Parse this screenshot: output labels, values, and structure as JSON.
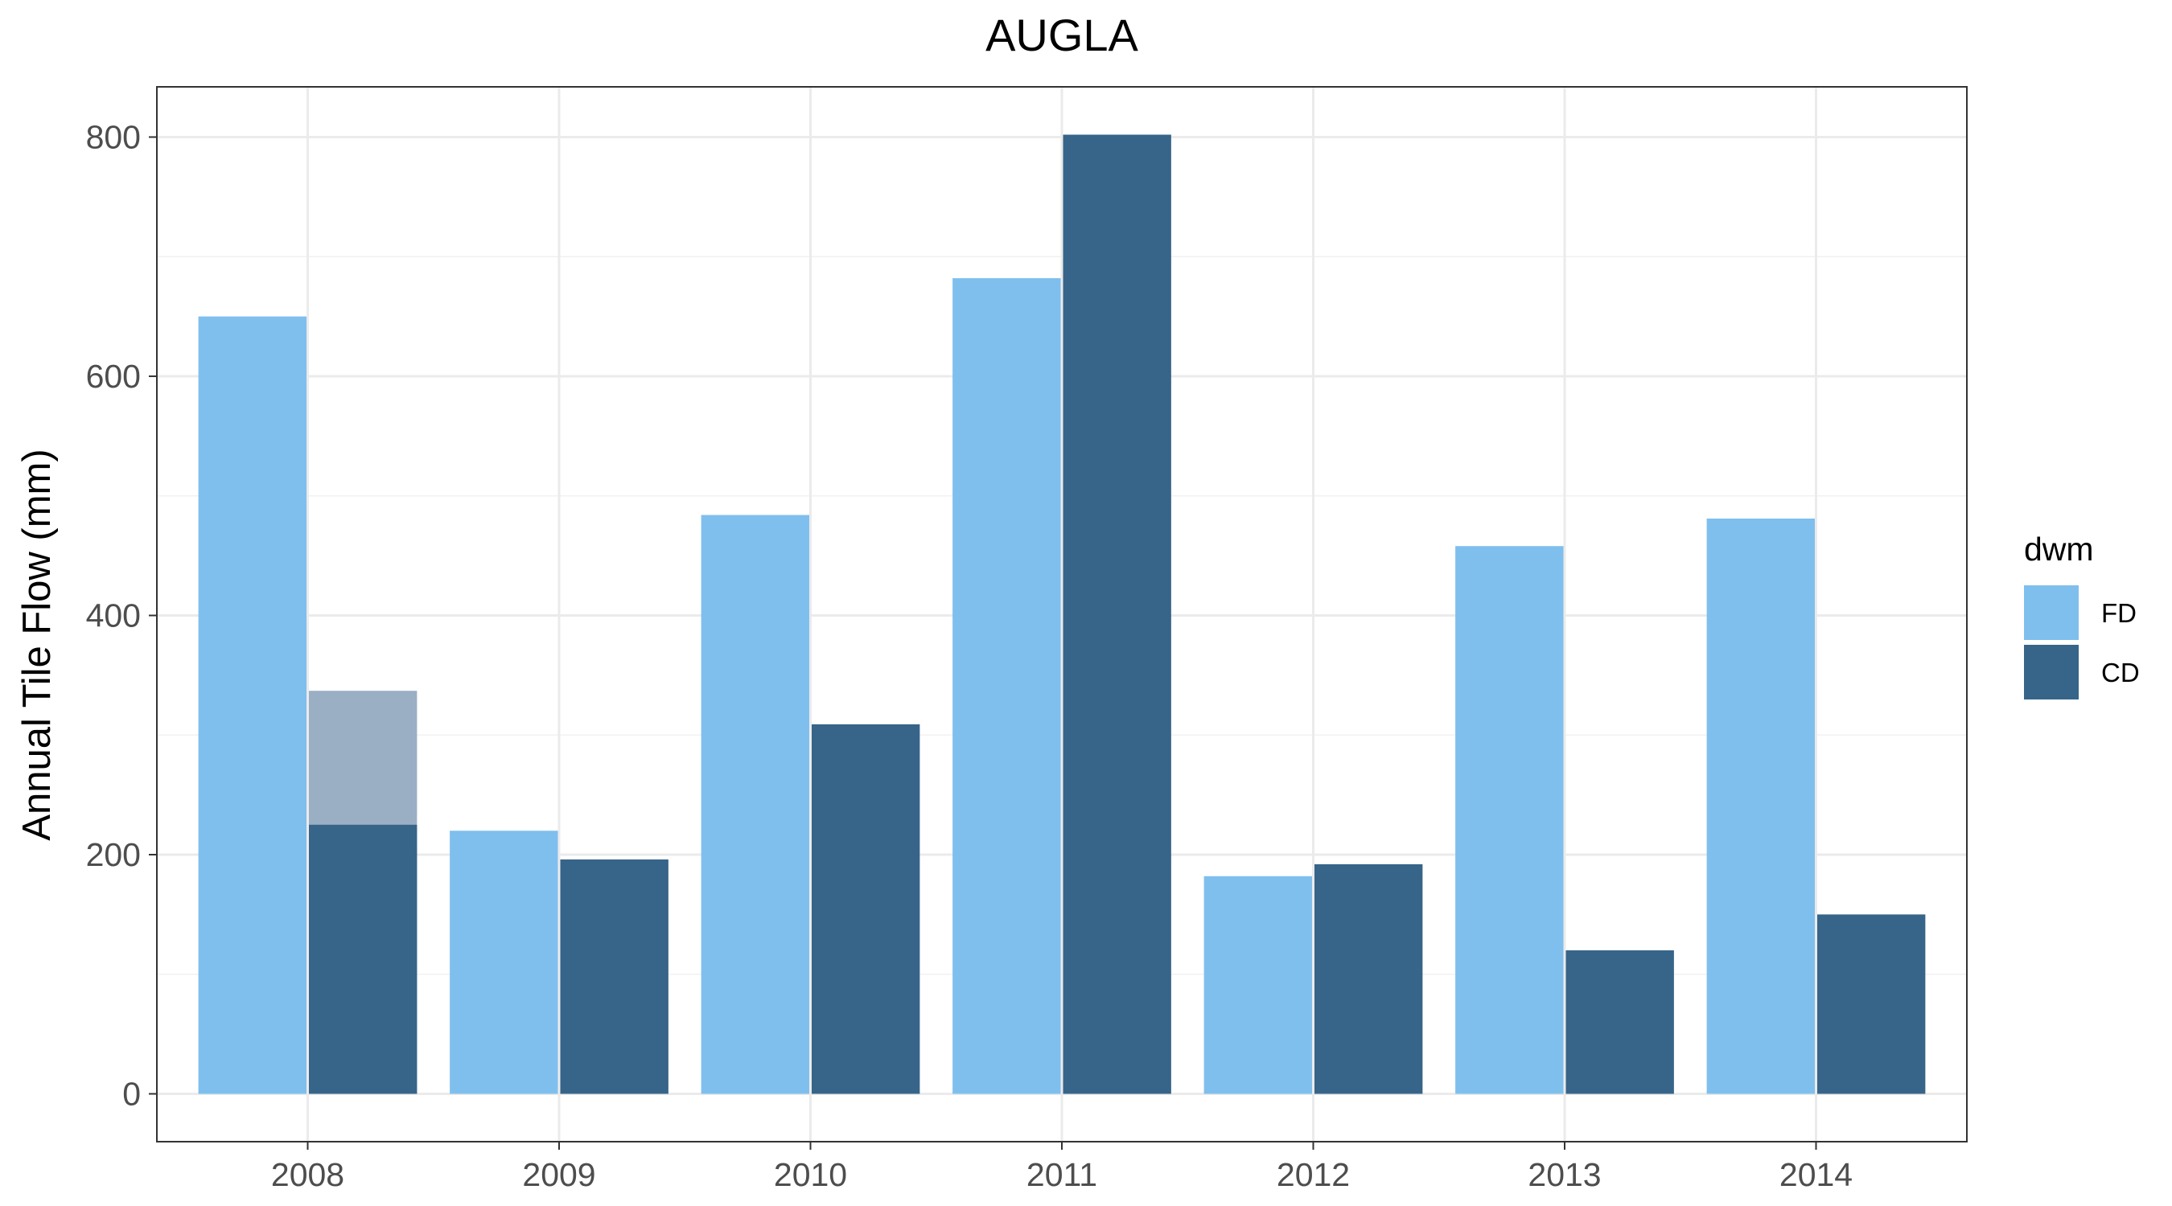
{
  "chart_data": {
    "type": "bar",
    "title": "AUGLA",
    "xlabel": "",
    "ylabel": "Annual Tile Flow (mm)",
    "categories": [
      "2008",
      "2009",
      "2010",
      "2011",
      "2012",
      "2013",
      "2014"
    ],
    "series": [
      {
        "name": "FD",
        "color": "#7fbfee",
        "values": [
          650,
          220,
          484,
          682,
          182,
          458,
          481
        ]
      },
      {
        "name": "CD",
        "color": "#376489",
        "values": [
          225,
          196,
          309,
          802,
          192,
          120,
          150
        ]
      }
    ],
    "overlay": {
      "category": "2008",
      "series": "CD",
      "value": 337,
      "color": "#9aafc4"
    },
    "ylim": [
      -40,
      842
    ],
    "yticks": [
      0,
      200,
      400,
      600,
      800
    ],
    "grid": true,
    "legend": {
      "title": "dwm",
      "position": "right",
      "entries": [
        "FD",
        "CD"
      ]
    }
  }
}
